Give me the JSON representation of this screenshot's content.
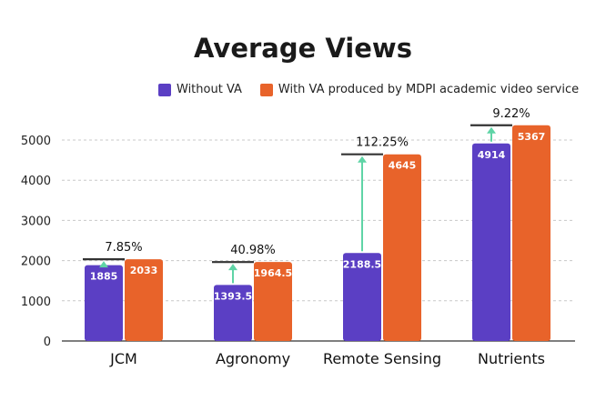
{
  "chart_data": {
    "type": "bar",
    "title": "Average Views",
    "categories": [
      "JCM",
      "Agronomy",
      "Remote Sensing",
      "Nutrients"
    ],
    "series": [
      {
        "name": "Without VA",
        "values": [
          1885,
          1393.5,
          2188.5,
          4914
        ],
        "labels": [
          "1885",
          "1393.5",
          "2188.5",
          "4914"
        ],
        "color": "#5b3fc4"
      },
      {
        "name": "With VA produced by MDPI academic video service",
        "values": [
          2033,
          1964.5,
          4645,
          5367
        ],
        "labels": [
          "2033",
          "1964.5",
          "4645",
          "5367"
        ],
        "color": "#e8632a"
      }
    ],
    "increase_labels": [
      "7.85%",
      "40.98%",
      "112.25%",
      "9.22%"
    ],
    "yticks": [
      "0",
      "1000",
      "2000",
      "3000",
      "4000",
      "5000"
    ],
    "ylim": [
      0,
      5400
    ],
    "xlabel": "",
    "ylabel": "",
    "grid": true,
    "legend_position": "top-right",
    "arrow_color": "#5fd4a6",
    "marker_color": "#333333"
  }
}
